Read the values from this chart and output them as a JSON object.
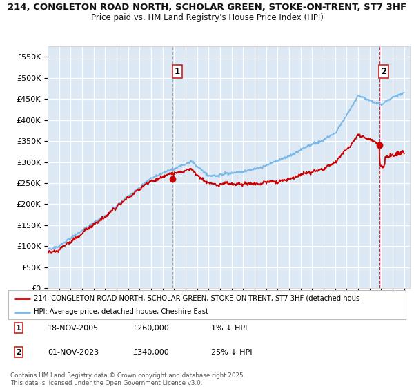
{
  "title1": "214, CONGLETON ROAD NORTH, SCHOLAR GREEN, STOKE-ON-TRENT, ST7 3HF",
  "title2": "Price paid vs. HM Land Registry's House Price Index (HPI)",
  "ylim": [
    0,
    575000
  ],
  "yticks": [
    0,
    50000,
    100000,
    150000,
    200000,
    250000,
    300000,
    350000,
    400000,
    450000,
    500000,
    550000
  ],
  "ytick_labels": [
    "£0",
    "£50K",
    "£100K",
    "£150K",
    "£200K",
    "£250K",
    "£300K",
    "£350K",
    "£400K",
    "£450K",
    "£500K",
    "£550K"
  ],
  "bg_color": "#dce9f5",
  "line_color_hpi": "#7ab8e8",
  "line_color_paid": "#cc0000",
  "marker1_y": 260000,
  "marker2_y": 340000,
  "legend_label1": "214, CONGLETON ROAD NORTH, SCHOLAR GREEN, STOKE-ON-TRENT, ST7 3HF (detached hous",
  "legend_label2": "HPI: Average price, detached house, Cheshire East",
  "note1_num": "1",
  "note1_date": "18-NOV-2005",
  "note1_price": "£260,000",
  "note1_desc": "1% ↓ HPI",
  "note2_num": "2",
  "note2_date": "01-NOV-2023",
  "note2_price": "£340,000",
  "note2_desc": "25% ↓ HPI",
  "footer": "Contains HM Land Registry data © Crown copyright and database right 2025.\nThis data is licensed under the Open Government Licence v3.0.",
  "xmin": 1995,
  "xmax": 2026.5
}
